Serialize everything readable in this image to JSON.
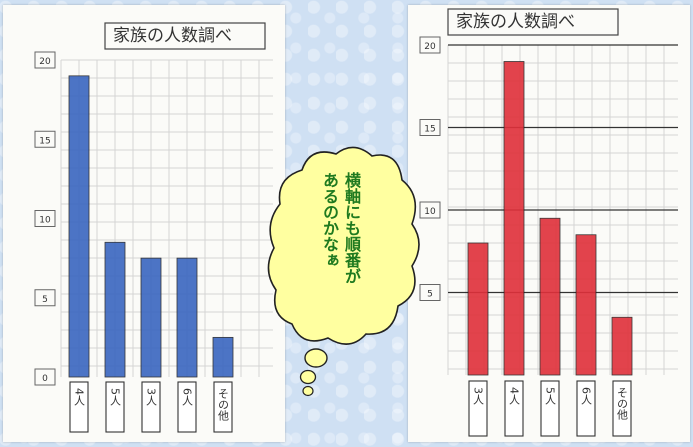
{
  "chart_data": [
    {
      "type": "bar",
      "title": "家族の人数調べ",
      "y_labels": [
        "20",
        "15",
        "10",
        "5",
        "0"
      ],
      "categories": [
        "4人",
        "5人",
        "3人",
        "6人",
        "その他"
      ],
      "values": [
        19,
        8.5,
        7.5,
        7.5,
        2.5
      ],
      "ylim": [
        0,
        20
      ],
      "bar_color": "#3a66c0"
    },
    {
      "type": "bar",
      "title": "家族の人数調べ",
      "y_labels": [
        "20",
        "15",
        "10",
        "5"
      ],
      "categories": [
        "3人",
        "4人",
        "5人",
        "6人",
        "その他"
      ],
      "values": [
        8,
        19,
        9.5,
        8.5,
        3.5
      ],
      "ylim": [
        0,
        20
      ],
      "bar_color": "#e0303a"
    }
  ],
  "bubble": {
    "lines": [
      "横軸にも順番が",
      "あるのかなぁ"
    ],
    "text_color": "#1f7a1f",
    "fill_color": "#ffffa0"
  }
}
